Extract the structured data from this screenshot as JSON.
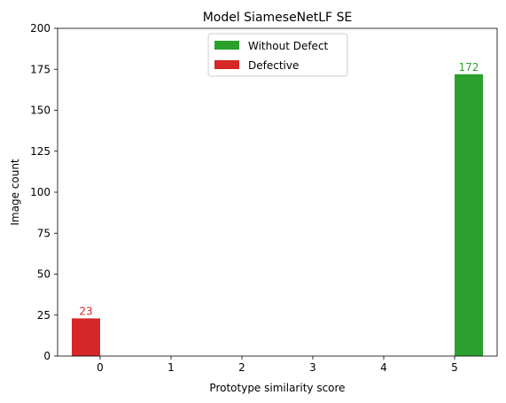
{
  "chart_data": {
    "type": "bar",
    "title": "Model SiameseNetLF SE",
    "xlabel": "Prototype similarity score",
    "ylabel": "Image count",
    "xlim": [
      -0.6,
      5.6
    ],
    "ylim": [
      0,
      200
    ],
    "x_ticks": [
      0,
      1,
      2,
      3,
      4,
      5
    ],
    "y_ticks": [
      0,
      25,
      50,
      75,
      100,
      125,
      150,
      175,
      200
    ],
    "bar_width": 0.4,
    "grid": false,
    "legend": "upper center",
    "series": [
      {
        "name": "Without Defect",
        "color": "#2ca02c",
        "offset": 0.2,
        "x": [
          0,
          1,
          2,
          3,
          4,
          5
        ],
        "values": [
          0,
          0,
          0,
          0,
          0,
          172
        ],
        "data_labels": [
          "",
          "",
          "",
          "",
          "",
          "172"
        ]
      },
      {
        "name": "Defective",
        "color": "#d62728",
        "offset": -0.2,
        "x": [
          0,
          1,
          2,
          3,
          4,
          5
        ],
        "values": [
          23,
          0,
          0,
          0,
          0,
          0
        ],
        "data_labels": [
          "23",
          "",
          "",
          "",
          "",
          ""
        ]
      }
    ]
  }
}
